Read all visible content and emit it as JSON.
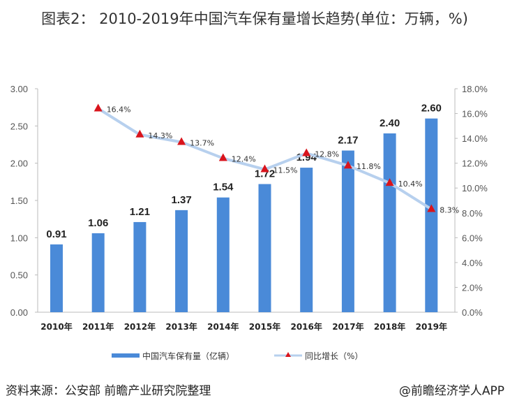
{
  "chart_data": {
    "type": "bar+line",
    "title": "图表2： 2010-2019年中国汽车保有量增长趋势(单位：万辆，%)",
    "categories": [
      "2010年",
      "2011年",
      "2012年",
      "2013年",
      "2014年",
      "2015年",
      "2016年",
      "2017年",
      "2018年",
      "2019年"
    ],
    "series": [
      {
        "name": "中国汽车保有量（亿辆）",
        "type": "bar",
        "axis": "left",
        "color": "#4a8ad8",
        "values": [
          0.91,
          1.06,
          1.21,
          1.37,
          1.54,
          1.72,
          1.94,
          2.17,
          2.4,
          2.6
        ],
        "labels": [
          "0.91",
          "1.06",
          "1.21",
          "1.37",
          "1.54",
          "1.72",
          "1.94",
          "2.17",
          "2.40",
          "2.60"
        ]
      },
      {
        "name": "同比增长（%）",
        "type": "line",
        "axis": "right",
        "color": "#b7d0ee",
        "marker_color": "#d9141c",
        "values": [
          null,
          16.4,
          14.3,
          13.7,
          12.4,
          11.5,
          12.8,
          11.8,
          10.4,
          8.3
        ],
        "labels": [
          "",
          "16.4%",
          "14.3%",
          "13.7%",
          "12.4%",
          "11.5%",
          "12.8%",
          "11.8%",
          "10.4%",
          "8.3%"
        ]
      }
    ],
    "left_axis": {
      "ylim": [
        0,
        3
      ],
      "ticks": [
        "0.00",
        "0.50",
        "1.00",
        "1.50",
        "2.00",
        "2.50",
        "3.00"
      ]
    },
    "right_axis": {
      "ylim": [
        0,
        18
      ],
      "ticks": [
        "0.0%",
        "2.0%",
        "4.0%",
        "6.0%",
        "8.0%",
        "10.0%",
        "12.0%",
        "14.0%",
        "16.0%",
        "18.0%"
      ]
    },
    "legend": "bottom"
  },
  "footer": {
    "source": "资料来源：公安部 前瞻产业研究院整理",
    "credit": "@前瞻经济学人APP"
  }
}
